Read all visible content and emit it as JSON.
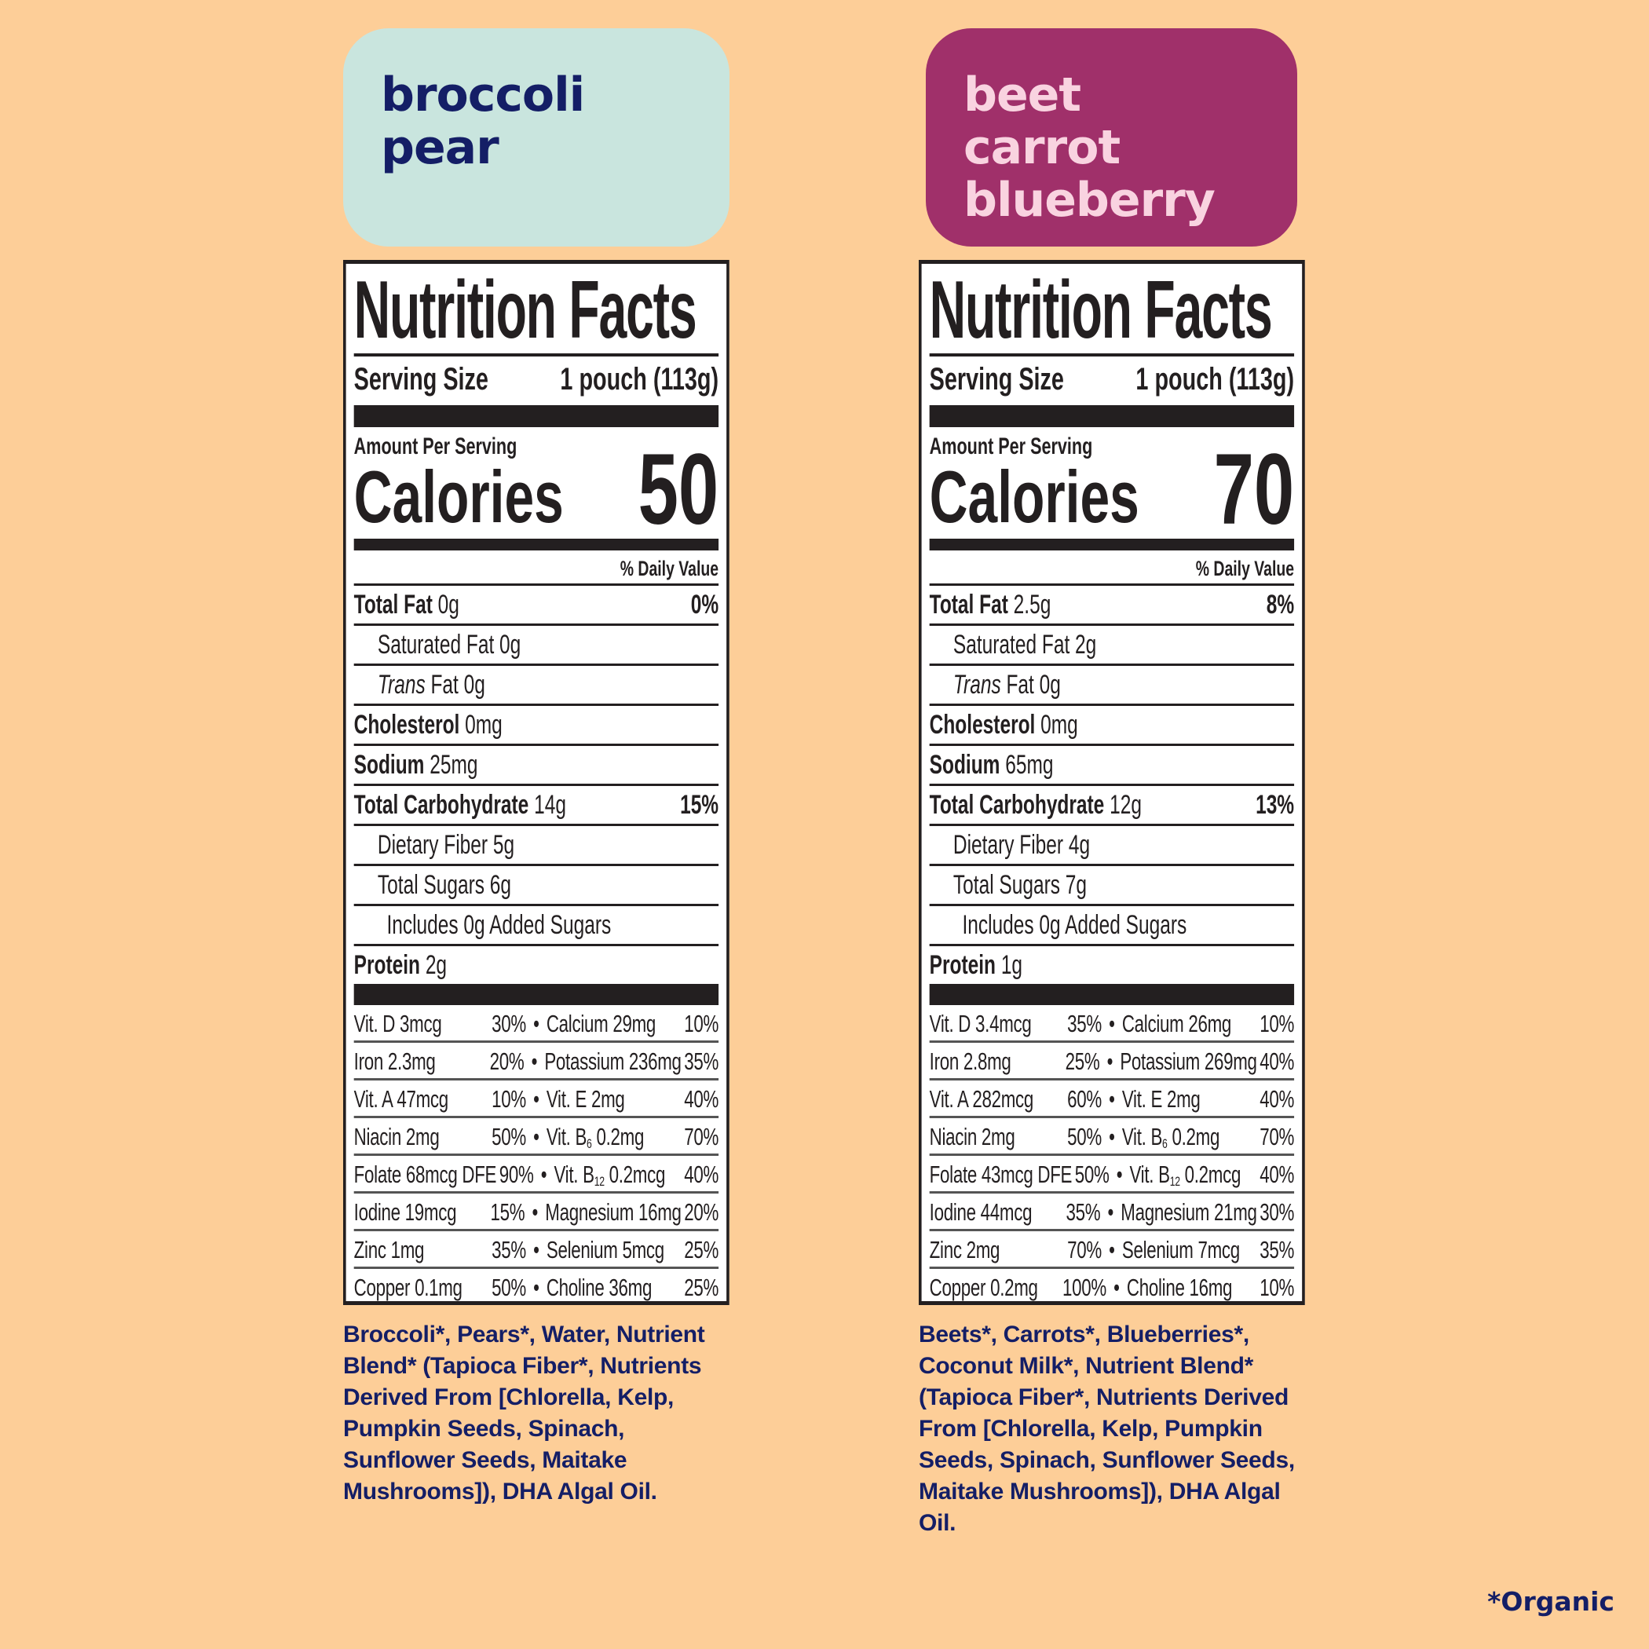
{
  "colors": {
    "background": "#FDCE98",
    "navy_text": "#141E66",
    "mint": "#C9E5DE",
    "plum": "#A0306A",
    "pink_text": "#F9D3E0",
    "label_ink": "#231F20"
  },
  "products": [
    {
      "flavor_lines": [
        "broccoli",
        "pear"
      ],
      "label": {
        "title": "Nutrition Facts",
        "serving_label": "Serving Size",
        "serving_value": "1 pouch (113g)",
        "amount_per_serving": "Amount Per Serving",
        "calories_label": "Calories",
        "calories": "50",
        "daily_value_header": "% Daily Value",
        "nutrients": [
          {
            "name": "Total Fat",
            "amount": "0g",
            "dv": "0%",
            "level": 0
          },
          {
            "name": "Saturated Fat 0g",
            "level": 1
          },
          {
            "italic": "Trans",
            "name": " Fat 0g",
            "level": 1
          },
          {
            "name": "Cholesterol",
            "amount": "0mg",
            "level": 0
          },
          {
            "name": "Sodium",
            "amount": "25mg",
            "level": 0
          },
          {
            "name": "Total Carbohydrate",
            "amount": "14g",
            "dv": "15%",
            "level": 0
          },
          {
            "name": "Dietary Fiber 5g",
            "level": 1
          },
          {
            "name": "Total Sugars 6g",
            "level": 1
          },
          {
            "name": "Includes 0g Added Sugars",
            "level": 2
          },
          {
            "name": "Protein",
            "amount": "2g",
            "level": 0
          }
        ],
        "vitamins": [
          [
            {
              "pre": "Vit. D 3mcg",
              "dv": "30%"
            },
            {
              "pre": "Calcium 29mg",
              "dv": "10%"
            }
          ],
          [
            {
              "pre": "Iron 2.3mg",
              "dv": "20%"
            },
            {
              "pre": "Potassium 236mg",
              "dv": "35%"
            }
          ],
          [
            {
              "pre": "Vit. A 47mcg",
              "dv": "10%"
            },
            {
              "pre": "Vit. E 2mg",
              "dv": "40%"
            }
          ],
          [
            {
              "pre": "Niacin 2mg",
              "dv": "50%"
            },
            {
              "pre": "Vit. B",
              "sub": "6",
              "post": " 0.2mg",
              "dv": "70%"
            }
          ],
          [
            {
              "pre": "Folate 68mcg DFE",
              "dv": "90%"
            },
            {
              "pre": "Vit. B",
              "sub": "12",
              "post": " 0.2mcg",
              "dv": "40%"
            }
          ],
          [
            {
              "pre": "Iodine 19mcg",
              "dv": "15%"
            },
            {
              "pre": "Magnesium 16mg",
              "dv": "20%"
            }
          ],
          [
            {
              "pre": "Zinc 1mg",
              "dv": "35%"
            },
            {
              "pre": "Selenium 5mcg",
              "dv": "25%"
            }
          ],
          [
            {
              "pre": "Copper 0.1mg",
              "dv": "50%"
            },
            {
              "pre": "Choline 36mg",
              "dv": "25%"
            }
          ]
        ]
      },
      "ingredients_lines": [
        "Broccoli*, Pears*, Water,  Nutrient",
        "Blend* (Tapioca Fiber*, Nutrients",
        "Derived From [Chlorella, Kelp,",
        "Pumpkin Seeds, Spinach,",
        "Sunflower Seeds, Maitake",
        "Mushrooms]), DHA Algal Oil."
      ]
    },
    {
      "flavor_lines": [
        "beet",
        "carrot",
        "blueberry"
      ],
      "label": {
        "title": "Nutrition Facts",
        "serving_label": "Serving Size",
        "serving_value": "1 pouch (113g)",
        "amount_per_serving": "Amount Per Serving",
        "calories_label": "Calories",
        "calories": "70",
        "daily_value_header": "% Daily Value",
        "nutrients": [
          {
            "name": "Total Fat",
            "amount": "2.5g",
            "dv": "8%",
            "level": 0
          },
          {
            "name": "Saturated Fat 2g",
            "level": 1
          },
          {
            "italic": "Trans",
            "name": " Fat 0g",
            "level": 1
          },
          {
            "name": "Cholesterol",
            "amount": "0mg",
            "level": 0
          },
          {
            "name": "Sodium",
            "amount": "65mg",
            "level": 0
          },
          {
            "name": "Total Carbohydrate",
            "amount": "12g",
            "dv": "13%",
            "level": 0
          },
          {
            "name": "Dietary Fiber 4g",
            "level": 1
          },
          {
            "name": "Total Sugars 7g",
            "level": 1
          },
          {
            "name": "Includes 0g Added Sugars",
            "level": 2
          },
          {
            "name": "Protein",
            "amount": "1g",
            "level": 0
          }
        ],
        "vitamins": [
          [
            {
              "pre": "Vit. D 3.4mcg",
              "dv": "35%"
            },
            {
              "pre": "Calcium 26mg",
              "dv": "10%"
            }
          ],
          [
            {
              "pre": "Iron 2.8mg",
              "dv": "25%"
            },
            {
              "pre": "Potassium 269mg",
              "dv": "40%"
            }
          ],
          [
            {
              "pre": "Vit. A 282mcg",
              "dv": "60%"
            },
            {
              "pre": "Vit. E 2mg",
              "dv": "40%"
            }
          ],
          [
            {
              "pre": "Niacin 2mg",
              "dv": "50%"
            },
            {
              "pre": "Vit. B",
              "sub": "6",
              "post": " 0.2mg",
              "dv": "70%"
            }
          ],
          [
            {
              "pre": "Folate 43mcg DFE",
              "dv": "50%"
            },
            {
              "pre": "Vit. B",
              "sub": "12",
              "post": " 0.2mcg",
              "dv": "40%"
            }
          ],
          [
            {
              "pre": "Iodine 44mcg",
              "dv": "35%"
            },
            {
              "pre": "Magnesium 21mg",
              "dv": "30%"
            }
          ],
          [
            {
              "pre": "Zinc 2mg",
              "dv": "70%"
            },
            {
              "pre": "Selenium 7mcg",
              "dv": "35%"
            }
          ],
          [
            {
              "pre": "Copper 0.2mg",
              "dv": "100%"
            },
            {
              "pre": "Choline 16mg",
              "dv": "10%"
            }
          ]
        ]
      },
      "ingredients_lines": [
        "Beets*, Carrots*, Blueberries*,",
        "Coconut Milk*, Nutrient Blend*",
        "(Tapioca Fiber*, Nutrients Derived",
        "From [Chlorella, Kelp, Pumpkin",
        "Seeds, Spinach, Sunflower Seeds,",
        "Maitake Mushrooms]), DHA Algal",
        "Oil."
      ]
    }
  ],
  "footnote": "*Organic"
}
